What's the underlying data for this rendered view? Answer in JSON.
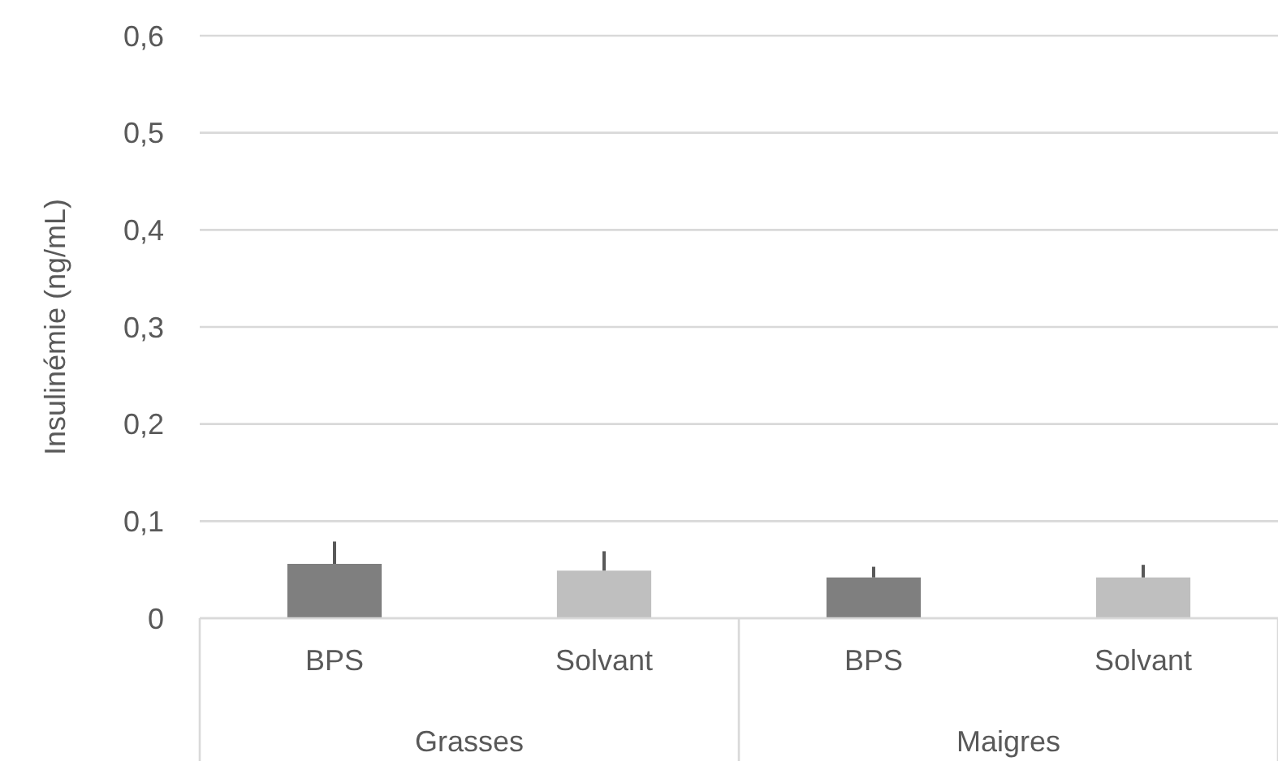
{
  "chart_data": {
    "type": "bar",
    "ylabel": "Insulinémie (ng/mL)",
    "categories": [
      "BPS",
      "Solvant",
      "BPS",
      "Solvant"
    ],
    "values": [
      0.056,
      0.049,
      0.042,
      0.042
    ],
    "colors": [
      "#7f7f7f",
      "#bfbfbf",
      "#7f7f7f",
      "#bfbfbf"
    ],
    "errors": [
      [
        0.056,
        0.079
      ],
      [
        0.049,
        0.069
      ],
      [
        0.042,
        0.053
      ],
      [
        0.042,
        0.055
      ]
    ],
    "annotations": [
      "Grasses",
      "Maigres"
    ],
    "ylim": [
      0,
      0.6
    ],
    "yticks": [
      {
        "value": 0,
        "label": "0"
      },
      {
        "value": 0.1,
        "label": "0,1"
      },
      {
        "value": 0.2,
        "label": "0,2"
      },
      {
        "value": 0.3,
        "label": "0,3"
      },
      {
        "value": 0.4,
        "label": "0,4"
      },
      {
        "value": 0.5,
        "label": "0,5"
      },
      {
        "value": 0.6,
        "label": "0,6"
      }
    ],
    "grid": "y"
  }
}
